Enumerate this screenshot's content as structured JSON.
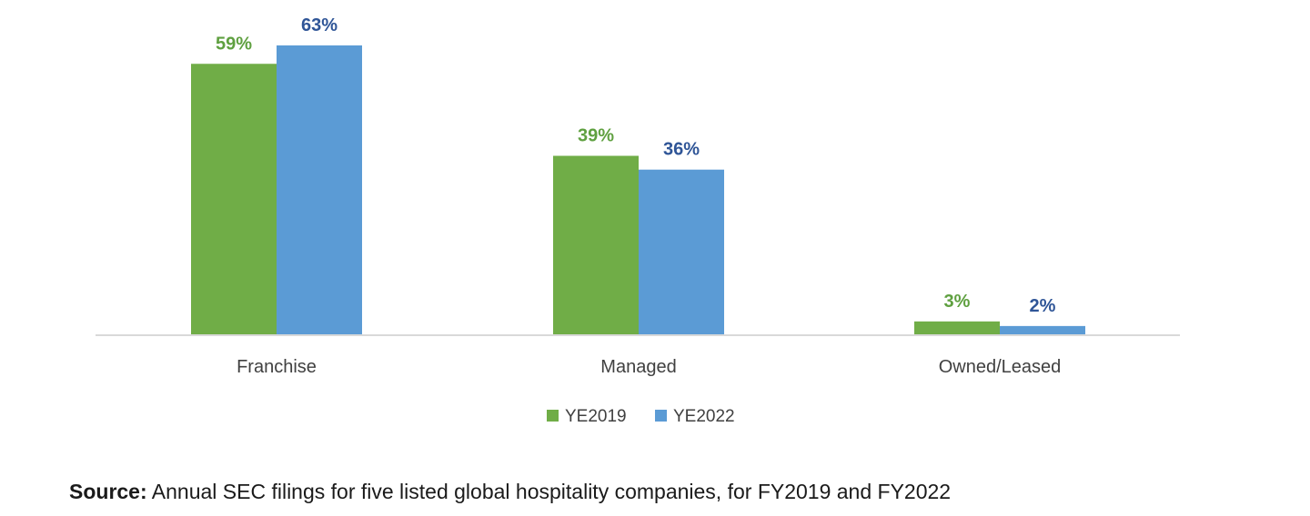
{
  "chart_data": {
    "type": "bar",
    "categories": [
      "Franchise",
      "Managed",
      "Owned/Leased"
    ],
    "series": [
      {
        "name": "YE2019",
        "values": [
          59,
          39,
          3
        ],
        "labels": [
          "59%",
          "39%",
          "3%"
        ],
        "color": "#70AD47",
        "label_color": "#5FA040"
      },
      {
        "name": "YE2022",
        "values": [
          63,
          36,
          2
        ],
        "labels": [
          "63%",
          "36%",
          "2%"
        ],
        "color": "#5B9BD5",
        "label_color": "#2F5597"
      }
    ],
    "ylim": [
      0,
      63
    ],
    "unit": "%",
    "grid": false,
    "legend": "bottom-center",
    "axis_color": "#d9d9d9"
  },
  "source": {
    "label": "Source:",
    "text": "Annual SEC filings for five listed global hospitality companies, for FY2019 and FY2022"
  }
}
